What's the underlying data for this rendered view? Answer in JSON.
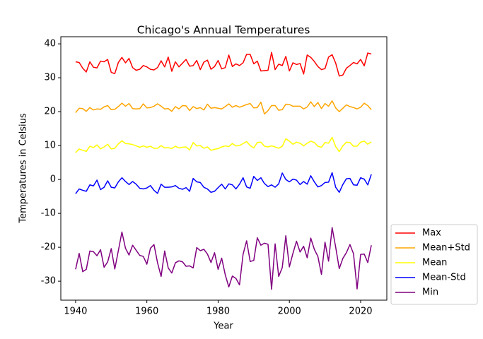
{
  "chart_data": {
    "type": "line",
    "title": "Chicago's Annual Temperatures",
    "x_label": "Year",
    "y_label": "Temperatures in Celsius",
    "x": [
      1940,
      1941,
      1942,
      1943,
      1944,
      1945,
      1946,
      1947,
      1948,
      1949,
      1950,
      1951,
      1952,
      1953,
      1954,
      1955,
      1956,
      1957,
      1958,
      1959,
      1960,
      1961,
      1962,
      1963,
      1964,
      1965,
      1966,
      1967,
      1968,
      1969,
      1970,
      1971,
      1972,
      1973,
      1974,
      1975,
      1976,
      1977,
      1978,
      1979,
      1980,
      1981,
      1982,
      1983,
      1984,
      1985,
      1986,
      1987,
      1988,
      1989,
      1990,
      1991,
      1992,
      1993,
      1994,
      1995,
      1996,
      1997,
      1998,
      1999,
      2000,
      2001,
      2002,
      2003,
      2004,
      2005,
      2006,
      2007,
      2008,
      2009,
      2010,
      2011,
      2012,
      2013,
      2014,
      2015,
      2016,
      2017,
      2018,
      2019,
      2020,
      2021,
      2022,
      2023
    ],
    "series": [
      {
        "name": "Max",
        "color": "#ff0000",
        "values": [
          34.7,
          34.5,
          32.8,
          31.7,
          34.7,
          33.1,
          32.9,
          34.9,
          34.7,
          35.4,
          31.6,
          31.2,
          34.5,
          36.0,
          34.4,
          35.7,
          33.0,
          32.2,
          32.5,
          33.6,
          33.2,
          32.5,
          32.3,
          33.0,
          35.0,
          33.2,
          36.1,
          31.9,
          34.7,
          33.2,
          34.3,
          35.4,
          33.4,
          33.6,
          35.1,
          32.4,
          34.6,
          35.2,
          32.5,
          33.3,
          35.1,
          32.6,
          33.0,
          36.7,
          33.3,
          34.1,
          33.6,
          34.4,
          36.9,
          36.9,
          34.1,
          34.9,
          32.0,
          32.1,
          32.2,
          37.5,
          32.4,
          34.0,
          33.6,
          36.3,
          32.0,
          34.4,
          33.9,
          34.2,
          31.1,
          36.7,
          36.0,
          34.8,
          33.3,
          32.4,
          32.7,
          36.1,
          36.8,
          34.3,
          30.5,
          30.8,
          32.8,
          33.6,
          34.5,
          34.1,
          35.4,
          33.5,
          37.3,
          37.0
        ]
      },
      {
        "name": "Mean+Std",
        "color": "#ffa500",
        "values": [
          19.7,
          21.0,
          20.9,
          20.1,
          21.2,
          20.5,
          20.8,
          20.7,
          21.4,
          21.8,
          20.6,
          20.7,
          21.5,
          22.5,
          21.6,
          22.4,
          20.9,
          20.8,
          20.9,
          22.3,
          21.1,
          21.2,
          21.6,
          22.3,
          21.6,
          20.8,
          20.9,
          20.1,
          21.5,
          20.8,
          21.8,
          21.7,
          20.3,
          21.5,
          20.9,
          21.2,
          20.5,
          22.2,
          21.0,
          21.2,
          21.0,
          20.8,
          21.5,
          22.3,
          21.3,
          21.8,
          21.3,
          21.7,
          22.1,
          22.4,
          21.1,
          21.2,
          22.8,
          19.3,
          20.3,
          21.8,
          21.8,
          20.4,
          20.6,
          22.2,
          22.1,
          21.6,
          21.6,
          21.6,
          20.8,
          21.4,
          22.9,
          21.5,
          22.7,
          20.9,
          22.4,
          21.6,
          23.2,
          21.1,
          20.0,
          21.0,
          22.0,
          21.5,
          21.2,
          20.8,
          21.3,
          22.5,
          21.8,
          20.6
        ]
      },
      {
        "name": "Mean",
        "color": "#ffff00",
        "values": [
          7.9,
          9.0,
          8.6,
          8.3,
          9.8,
          9.4,
          10.2,
          9.0,
          9.6,
          10.4,
          9.0,
          9.2,
          10.5,
          11.4,
          10.6,
          10.5,
          10.3,
          9.9,
          9.5,
          9.9,
          9.5,
          9.8,
          9.2,
          9.2,
          10.0,
          9.3,
          9.4,
          9.1,
          9.8,
          9.3,
          9.5,
          9.6,
          8.7,
          10.9,
          9.9,
          10.0,
          9.2,
          9.6,
          8.6,
          8.9,
          9.1,
          9.6,
          9.9,
          9.7,
          10.6,
          9.9,
          10.0,
          10.6,
          11.2,
          10.0,
          9.3,
          10.9,
          11.0,
          9.8,
          9.6,
          9.9,
          9.6,
          9.2,
          9.8,
          12.0,
          11.3,
          10.4,
          11.0,
          10.7,
          9.9,
          10.7,
          11.3,
          10.9,
          9.8,
          9.5,
          10.9,
          10.7,
          12.4,
          9.7,
          8.2,
          9.9,
          11.0,
          10.9,
          9.8,
          9.8,
          11.0,
          11.3,
          10.4,
          11.1
        ]
      },
      {
        "name": "Mean-Std",
        "color": "#0000ff",
        "values": [
          -4.2,
          -2.8,
          -3.2,
          -3.5,
          -1.6,
          -1.9,
          -0.2,
          -3.0,
          -2.3,
          -0.4,
          -2.3,
          -2.5,
          -0.7,
          0.5,
          -0.6,
          -1.5,
          -0.6,
          -1.4,
          -2.6,
          -2.8,
          -2.5,
          -1.8,
          -3.2,
          -4.1,
          -1.4,
          -2.3,
          -2.3,
          -2.2,
          -1.8,
          -2.6,
          -2.9,
          -2.4,
          -3.5,
          0.3,
          -0.7,
          -0.9,
          -2.3,
          -2.8,
          -3.8,
          -3.5,
          -2.4,
          -1.4,
          -2.8,
          -1.3,
          -1.6,
          -2.8,
          -1.4,
          0.5,
          -2.2,
          -2.6,
          0.9,
          -0.3,
          0.5,
          -1.2,
          -2.1,
          -1.6,
          -2.3,
          -1.3,
          1.9,
          0.0,
          -0.7,
          0.1,
          -0.2,
          -1.5,
          -0.6,
          -1.4,
          1.1,
          -0.7,
          -2.2,
          -1.8,
          -0.9,
          -0.8,
          2.0,
          -2.3,
          -3.8,
          -1.5,
          0.2,
          0.3,
          -1.6,
          -1.7,
          0.5,
          0.1,
          -1.6,
          1.5
        ]
      },
      {
        "name": "Min",
        "color": "#800080",
        "values": [
          -26.5,
          -21.8,
          -27.2,
          -26.5,
          -21.1,
          -21.3,
          -22.5,
          -20.7,
          -25.9,
          -24.3,
          -20.4,
          -26.4,
          -21.0,
          -15.5,
          -20.3,
          -22.3,
          -19.4,
          -20.9,
          -22.4,
          -22.7,
          -25.0,
          -20.3,
          -19.2,
          -24.6,
          -28.6,
          -21.1,
          -26.1,
          -27.6,
          -24.6,
          -24.0,
          -24.3,
          -25.6,
          -25.5,
          -26.1,
          -20.1,
          -21.0,
          -20.6,
          -22.0,
          -24.5,
          -21.6,
          -26.5,
          -23.2,
          -28.1,
          -31.7,
          -28.5,
          -29.2,
          -31.1,
          -22.1,
          -18.1,
          -24.2,
          -23.9,
          -17.2,
          -19.4,
          -18.8,
          -19.1,
          -32.4,
          -19.0,
          -28.6,
          -26.0,
          -16.6,
          -25.8,
          -21.8,
          -18.2,
          -21.4,
          -19.7,
          -23.1,
          -17.3,
          -20.6,
          -22.7,
          -28.0,
          -18.5,
          -24.1,
          -14.2,
          -20.0,
          -26.3,
          -23.3,
          -21.6,
          -19.2,
          -21.9,
          -32.3,
          -22.1,
          -22.0,
          -24.5,
          -19.4
        ]
      }
    ],
    "xlim": [
      1935.85,
      2027.35
    ],
    "xticks": [
      1940,
      1960,
      1980,
      2000,
      2020
    ],
    "ylim": [
      -35.6,
      42.1
    ],
    "yticks": [
      -30,
      -20,
      -10,
      0,
      10,
      20,
      30,
      40
    ],
    "grid": false,
    "legend": "outside-lower-right"
  }
}
